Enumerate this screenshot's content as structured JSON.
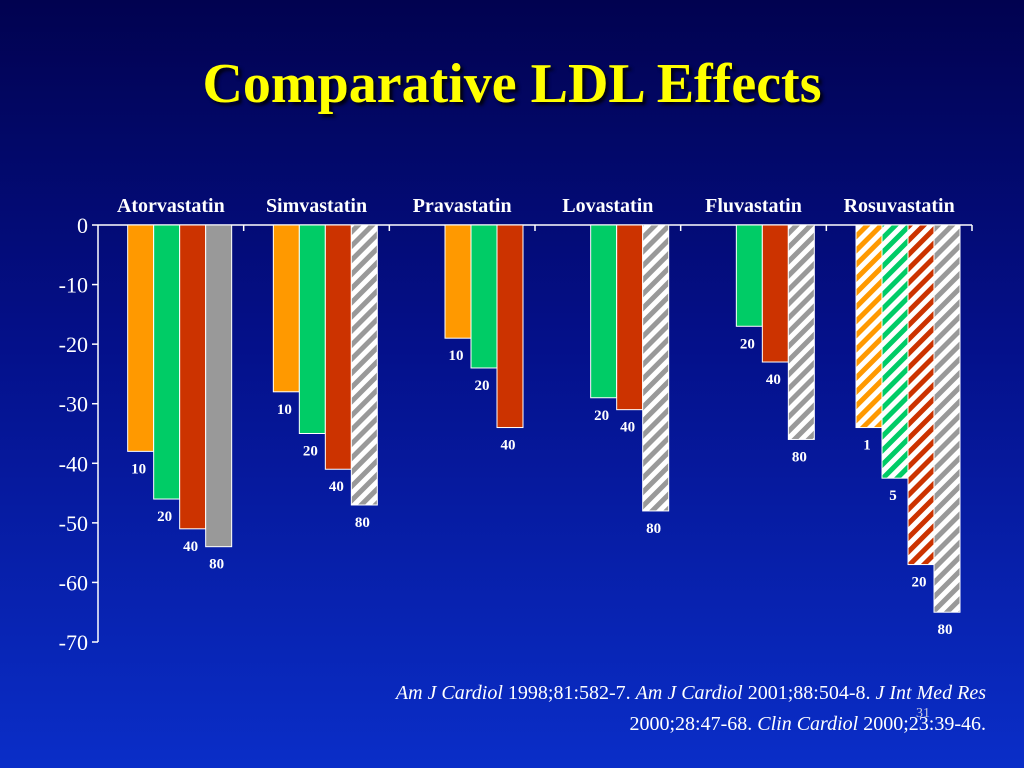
{
  "slide": {
    "title": "Comparative LDL Effects",
    "slide_number": "31"
  },
  "chart_data": {
    "type": "bar",
    "ylim": [
      -70,
      0
    ],
    "y_ticks": [
      0,
      -10,
      -20,
      -30,
      -40,
      -50,
      -60,
      -70
    ],
    "grid": false,
    "colors": {
      "orange": "#ff9900",
      "green": "#00cc66",
      "red": "#cc3300",
      "gray": "#999999",
      "axis": "#ffffff",
      "label": "#ffffff"
    },
    "drugs": [
      {
        "name": "Atorvastatin",
        "bars": [
          {
            "dose": "10",
            "value": -38,
            "color": "orange",
            "hatched": false
          },
          {
            "dose": "20",
            "value": -46,
            "color": "green",
            "hatched": false
          },
          {
            "dose": "40",
            "value": -51,
            "color": "red",
            "hatched": false
          },
          {
            "dose": "80",
            "value": -54,
            "color": "gray",
            "hatched": false
          }
        ]
      },
      {
        "name": "Simvastatin",
        "bars": [
          {
            "dose": "10",
            "value": -28,
            "color": "orange",
            "hatched": false
          },
          {
            "dose": "20",
            "value": -35,
            "color": "green",
            "hatched": false
          },
          {
            "dose": "40",
            "value": -41,
            "color": "red",
            "hatched": false
          },
          {
            "dose": "80",
            "value": -47,
            "color": "gray",
            "hatched": true
          }
        ]
      },
      {
        "name": "Pravastatin",
        "bars": [
          {
            "dose": "10",
            "value": -19,
            "color": "orange",
            "hatched": false
          },
          {
            "dose": "20",
            "value": -24,
            "color": "green",
            "hatched": false
          },
          {
            "dose": "40",
            "value": -34,
            "color": "red",
            "hatched": false
          }
        ]
      },
      {
        "name": "Lovastatin",
        "bars": [
          {
            "dose": "20",
            "value": -29,
            "color": "green",
            "hatched": false
          },
          {
            "dose": "40",
            "value": -31,
            "color": "red",
            "hatched": false
          },
          {
            "dose": "80",
            "value": -48,
            "color": "gray",
            "hatched": true
          }
        ]
      },
      {
        "name": "Fluvastatin",
        "bars": [
          {
            "dose": "20",
            "value": -17,
            "color": "green",
            "hatched": false
          },
          {
            "dose": "40",
            "value": -23,
            "color": "red",
            "hatched": false
          },
          {
            "dose": "80",
            "value": -36,
            "color": "gray",
            "hatched": true
          }
        ]
      },
      {
        "name": "Rosuvastatin",
        "bars": [
          {
            "dose": "1",
            "value": -34,
            "color": "orange",
            "hatched": true
          },
          {
            "dose": "5",
            "value": -42.5,
            "color": "green",
            "hatched": true
          },
          {
            "dose": "20",
            "value": -57,
            "color": "red",
            "hatched": true
          },
          {
            "dose": "80",
            "value": -65,
            "color": "gray",
            "hatched": true
          }
        ]
      }
    ]
  },
  "citation": {
    "j1": "Am J Cardiol",
    "r1": " 1998;81:582-7.  ",
    "j2": "Am J Cardiol",
    "r2": " 2001;88:504-8.  ",
    "j3": "J Int Med Res",
    "r3": " 2000;28:47-68.  ",
    "j4": "Clin Cardiol",
    "r4": " 2000;23:39-46."
  }
}
